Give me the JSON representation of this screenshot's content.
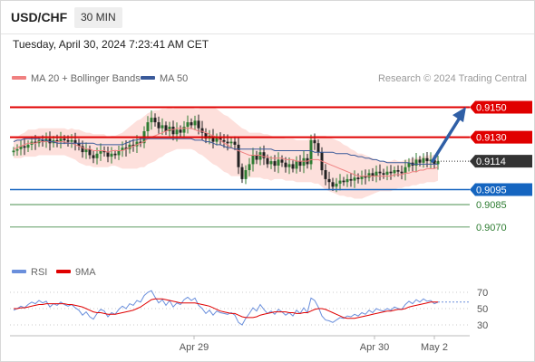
{
  "header": {
    "symbol": "USD/CHF",
    "timeframe": "30 MIN",
    "timestamp": "Tuesday, April 30, 2024 7:23:41 AM CET"
  },
  "legend": {
    "ma20_label": "MA 20 + Bollinger Bands",
    "ma50_label": "MA 50",
    "ma20_color": "#f08080",
    "ma50_color": "#3a5a9a",
    "credit": "Research © 2024 Trading Central"
  },
  "rsi_legend": {
    "rsi_label": "RSI",
    "ma_label": "9MA",
    "rsi_color": "#6a8fdc",
    "ma_color": "#e00000"
  },
  "colors": {
    "up_candle": "#2e7d32",
    "down_candle": "#222222",
    "resistance": "#e00000",
    "support": "#1565c0",
    "secondary_support": "#2e7d32",
    "bollinger_fill": "#fde0dc",
    "arrow": "#2f5fa6"
  },
  "chart_data": {
    "type": "candlestick",
    "price_ylim": [
      0.905,
      0.9163
    ],
    "levels": [
      {
        "name": "resistance-2",
        "value": 0.915,
        "label": "0.9150",
        "style": "resistance"
      },
      {
        "name": "resistance-1",
        "value": 0.913,
        "label": "0.9130",
        "style": "resistance"
      },
      {
        "name": "current",
        "value": 0.9114,
        "label": "0.9114",
        "style": "current"
      },
      {
        "name": "support-1",
        "value": 0.9095,
        "label": "0.9095",
        "style": "support"
      },
      {
        "name": "support-2",
        "value": 0.9085,
        "label": "0.9085",
        "style": "secondary"
      },
      {
        "name": "support-3",
        "value": 0.907,
        "label": "0.9070",
        "style": "secondary"
      }
    ],
    "projection": {
      "from_value": 0.9114,
      "to_value": 0.9146
    },
    "x_ticks": [
      "Apr 29",
      "Apr 30",
      "May 2"
    ],
    "close": [
      0.9121,
      0.9122,
      0.9124,
      0.9123,
      0.9125,
      0.9127,
      0.9126,
      0.9128,
      0.9127,
      0.9129,
      0.9126,
      0.9128,
      0.9127,
      0.9129,
      0.9128,
      0.9127,
      0.9128,
      0.9126,
      0.9124,
      0.912,
      0.9122,
      0.9118,
      0.9116,
      0.9119,
      0.9121,
      0.912,
      0.9117,
      0.9119,
      0.9118,
      0.9121,
      0.9123,
      0.9122,
      0.9125,
      0.9124,
      0.9127,
      0.9126,
      0.9134,
      0.914,
      0.9143,
      0.914,
      0.9136,
      0.9138,
      0.9134,
      0.9137,
      0.9132,
      0.9135,
      0.9133,
      0.9137,
      0.914,
      0.9138,
      0.9141,
      0.9136,
      0.9133,
      0.9129,
      0.9131,
      0.9127,
      0.913,
      0.9128,
      0.9127,
      0.9126,
      0.9127,
      0.9125,
      0.911,
      0.9102,
      0.9108,
      0.9112,
      0.9118,
      0.9115,
      0.912,
      0.9116,
      0.9112,
      0.9114,
      0.9111,
      0.9115,
      0.9113,
      0.911,
      0.9112,
      0.9109,
      0.9114,
      0.9111,
      0.9116,
      0.9112,
      0.9128,
      0.9126,
      0.912,
      0.9108,
      0.9102,
      0.91,
      0.9097,
      0.9099,
      0.9101,
      0.91,
      0.9102,
      0.9101,
      0.9103,
      0.9102,
      0.9104,
      0.9103,
      0.9106,
      0.9104,
      0.9107,
      0.9106,
      0.9105,
      0.9107,
      0.9106,
      0.9108,
      0.9107,
      0.9106,
      0.911,
      0.9113,
      0.9111,
      0.9115,
      0.9113,
      0.9116,
      0.9114,
      0.9115,
      0.9112,
      0.9114
    ],
    "ma50": [
      0.9127,
      0.9128,
      0.9128,
      0.9129,
      0.9129,
      0.9129,
      0.9129,
      0.9129,
      0.9128,
      0.9128,
      0.9127,
      0.9127,
      0.9126,
      0.9126,
      0.9126,
      0.9126,
      0.9126,
      0.9126,
      0.9126,
      0.9126,
      0.9126,
      0.9126,
      0.9126,
      0.9125,
      0.9125,
      0.9125,
      0.9125,
      0.9125,
      0.9125,
      0.9125,
      0.9125,
      0.9126,
      0.9127,
      0.9128,
      0.9128,
      0.9129,
      0.9129,
      0.9129,
      0.9129,
      0.9129,
      0.9129,
      0.9129,
      0.9129,
      0.9129,
      0.9129,
      0.9129,
      0.9129,
      0.9129,
      0.9129,
      0.9129,
      0.9128,
      0.9128,
      0.9128,
      0.9127,
      0.9127,
      0.9126,
      0.9125,
      0.9125,
      0.9124,
      0.9123,
      0.9123,
      0.9122,
      0.9122,
      0.9122,
      0.9122,
      0.9122,
      0.9122,
      0.9122,
      0.9122,
      0.9122,
      0.9122,
      0.9122,
      0.9121,
      0.9121,
      0.9121,
      0.9121,
      0.9121,
      0.9121,
      0.9121,
      0.9121,
      0.9121,
      0.9121,
      0.9121,
      0.912,
      0.912,
      0.912,
      0.912,
      0.912,
      0.912,
      0.9119,
      0.9119,
      0.9119,
      0.9119,
      0.9118,
      0.9118,
      0.9117,
      0.9117,
      0.9116,
      0.9116,
      0.9115,
      0.9115,
      0.9114,
      0.9114,
      0.9113,
      0.9113,
      0.9113,
      0.9113,
      0.9113,
      0.9113,
      0.9113,
      0.9112,
      0.9112,
      0.9112,
      0.9112,
      0.9112,
      0.9112,
      0.9112,
      0.9112
    ],
    "ma20": [
      0.9122,
      0.9123,
      0.9124,
      0.9125,
      0.9126,
      0.9126,
      0.9126,
      0.9127,
      0.9127,
      0.9127,
      0.9127,
      0.9127,
      0.9127,
      0.9127,
      0.9127,
      0.9126,
      0.9126,
      0.9125,
      0.9124,
      0.9123,
      0.9122,
      0.9122,
      0.9121,
      0.9121,
      0.9121,
      0.9121,
      0.912,
      0.9121,
      0.9121,
      0.9121,
      0.9121,
      0.9122,
      0.9123,
      0.9124,
      0.9125,
      0.9126,
      0.9127,
      0.9129,
      0.913,
      0.9131,
      0.9132,
      0.9133,
      0.9134,
      0.9135,
      0.9135,
      0.9136,
      0.9136,
      0.9136,
      0.9136,
      0.9136,
      0.9135,
      0.9134,
      0.9134,
      0.9133,
      0.9132,
      0.9131,
      0.913,
      0.9128,
      0.9126,
      0.9125,
      0.9123,
      0.9122,
      0.9121,
      0.912,
      0.9119,
      0.9118,
      0.9118,
      0.9118,
      0.9118,
      0.9117,
      0.9117,
      0.9116,
      0.9116,
      0.9116,
      0.9116,
      0.9115,
      0.9115,
      0.9115,
      0.9114,
      0.9114,
      0.9114,
      0.9114,
      0.9115,
      0.9115,
      0.9115,
      0.9114,
      0.9113,
      0.9112,
      0.9111,
      0.911,
      0.9109,
      0.9108,
      0.9107,
      0.9106,
      0.9105,
      0.9104,
      0.9104,
      0.9104,
      0.9104,
      0.9104,
      0.9104,
      0.9104,
      0.9104,
      0.9104,
      0.9104,
      0.9105,
      0.9105,
      0.9105,
      0.9106,
      0.9106,
      0.9107,
      0.9107,
      0.9108,
      0.9108,
      0.9109,
      0.9109,
      0.9109,
      0.911
    ],
    "bb_width": [
      0.0006,
      0.0007,
      0.0008,
      0.0008,
      0.0009,
      0.0009,
      0.0009,
      0.0009,
      0.0009,
      0.0009,
      0.0009,
      0.0009,
      0.0009,
      0.0009,
      0.0009,
      0.0009,
      0.001,
      0.001,
      0.0011,
      0.0011,
      0.0011,
      0.0011,
      0.0011,
      0.0011,
      0.0011,
      0.0011,
      0.001,
      0.001,
      0.001,
      0.0011,
      0.0012,
      0.0013,
      0.0014,
      0.0015,
      0.0016,
      0.0016,
      0.0017,
      0.0017,
      0.0017,
      0.0017,
      0.0016,
      0.0016,
      0.0015,
      0.0015,
      0.0014,
      0.0014,
      0.0014,
      0.0014,
      0.0014,
      0.0014,
      0.0014,
      0.0015,
      0.0016,
      0.0017,
      0.0018,
      0.0019,
      0.0019,
      0.0019,
      0.0019,
      0.0019,
      0.0019,
      0.0018,
      0.0017,
      0.0016,
      0.0016,
      0.0015,
      0.0015,
      0.0015,
      0.0015,
      0.0015,
      0.0015,
      0.0015,
      0.0014,
      0.0014,
      0.0014,
      0.0014,
      0.0014,
      0.0014,
      0.0014,
      0.0014,
      0.0014,
      0.0014,
      0.0015,
      0.0016,
      0.0016,
      0.0017,
      0.0018,
      0.0018,
      0.0018,
      0.0018,
      0.0018,
      0.0017,
      0.0017,
      0.0016,
      0.0016,
      0.0015,
      0.0015,
      0.0014,
      0.0013,
      0.0012,
      0.0011,
      0.001,
      0.001,
      0.001,
      0.001,
      0.001,
      0.0009,
      0.0009,
      0.0009,
      0.0009,
      0.0009,
      0.0009,
      0.0009,
      0.0009,
      0.0009,
      0.0009,
      0.0009,
      0.0009
    ],
    "rsi": {
      "ylim": [
        20,
        80
      ],
      "ticks": [
        70,
        50,
        30
      ],
      "rsi": [
        48,
        50,
        53,
        51,
        55,
        58,
        56,
        60,
        57,
        59,
        52,
        56,
        54,
        58,
        55,
        53,
        55,
        51,
        48,
        42,
        46,
        40,
        37,
        44,
        49,
        47,
        40,
        45,
        43,
        49,
        53,
        50,
        56,
        54,
        60,
        58,
        66,
        70,
        72,
        64,
        57,
        61,
        54,
        60,
        52,
        57,
        55,
        61,
        64,
        60,
        63,
        54,
        50,
        44,
        48,
        42,
        47,
        45,
        44,
        43,
        45,
        42,
        33,
        30,
        38,
        44,
        51,
        47,
        55,
        49,
        44,
        47,
        43,
        49,
        46,
        42,
        45,
        41,
        48,
        44,
        51,
        45,
        63,
        60,
        52,
        41,
        36,
        35,
        33,
        36,
        39,
        38,
        41,
        40,
        43,
        41,
        45,
        43,
        48,
        45,
        50,
        48,
        47,
        50,
        48,
        52,
        50,
        49,
        55,
        59,
        56,
        61,
        58,
        62,
        59,
        60,
        56,
        58
      ],
      "ma9": [
        50,
        50,
        51,
        51,
        52,
        53,
        54,
        55,
        55,
        56,
        56,
        56,
        56,
        56,
        56,
        55,
        55,
        54,
        53,
        52,
        50,
        48,
        46,
        45,
        45,
        44,
        43,
        43,
        43,
        44,
        45,
        46,
        47,
        48,
        50,
        52,
        55,
        58,
        61,
        62,
        62,
        62,
        61,
        60,
        59,
        58,
        57,
        57,
        57,
        57,
        57,
        56,
        55,
        54,
        53,
        51,
        49,
        47,
        46,
        45,
        44,
        44,
        42,
        40,
        39,
        39,
        39,
        40,
        42,
        43,
        44,
        45,
        46,
        46,
        46,
        46,
        45,
        45,
        44,
        44,
        45,
        45,
        47,
        49,
        50,
        50,
        49,
        47,
        45,
        43,
        41,
        39,
        38,
        38,
        38,
        39,
        40,
        41,
        42,
        43,
        44,
        45,
        46,
        47,
        47,
        48,
        49,
        49,
        50,
        52,
        53,
        54,
        55,
        56,
        57,
        58,
        58,
        58
      ]
    }
  }
}
